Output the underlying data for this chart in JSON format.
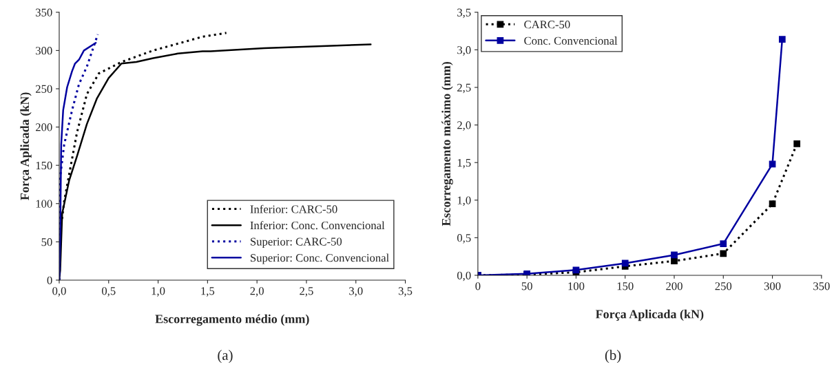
{
  "chart_data": [
    {
      "type": "line",
      "xlabel": "Escorregamento médio (mm)",
      "ylabel": "Força Aplicada (kN)",
      "xlim": [
        0,
        3.5
      ],
      "ylim": [
        0,
        350
      ],
      "xticks": [
        {
          "value": 0,
          "label": "0,0"
        },
        {
          "value": 0.5,
          "label": "0,5"
        },
        {
          "value": 1,
          "label": "1,0"
        },
        {
          "value": 1.5,
          "label": "1,5"
        },
        {
          "value": 2,
          "label": "2,0"
        },
        {
          "value": 2.5,
          "label": "2,5"
        },
        {
          "value": 3,
          "label": "3,0"
        },
        {
          "value": 3.5,
          "label": "3,5"
        }
      ],
      "yticks": [
        0,
        50,
        100,
        150,
        200,
        250,
        300,
        350
      ],
      "legend": "bottom right",
      "grid": false,
      "annotations": [
        "(a)"
      ],
      "series": [
        {
          "name": "Inferior: CARC-50",
          "color": "#000000",
          "line_style": "dotted",
          "x": [
            0,
            0.01,
            0.05,
            0.18,
            0.28,
            0.4,
            0.63,
            0.95,
            1.45,
            1.69
          ],
          "values": [
            0,
            60,
            103,
            193,
            243,
            270,
            285,
            300,
            318,
            323
          ]
        },
        {
          "name": "Inferior: Conc. Convencional",
          "color": "#000000",
          "line_style": "solid",
          "x": [
            0,
            0.01,
            0.03,
            0.1,
            0.18,
            0.28,
            0.38,
            0.5,
            0.63,
            0.78,
            0.95,
            1.2,
            1.45,
            1.53,
            2.07,
            3.15
          ],
          "values": [
            0,
            13,
            87,
            130,
            162,
            204,
            237,
            264,
            283,
            285,
            290,
            296,
            299,
            299,
            303,
            308
          ]
        },
        {
          "name": "Superior: CARC-50",
          "color": "#0000a0",
          "line_style": "dotted",
          "x": [
            0,
            0.01,
            0.05,
            0.13,
            0.2,
            0.28,
            0.39
          ],
          "values": [
            0,
            135,
            177,
            222,
            256,
            279,
            321
          ]
        },
        {
          "name": "Superior: Conc. Convencional",
          "color": "#0000a0",
          "line_style": "solid",
          "x": [
            0,
            0.01,
            0.02,
            0.04,
            0.08,
            0.13,
            0.16,
            0.2,
            0.25,
            0.37
          ],
          "values": [
            0,
            58,
            177,
            222,
            252,
            273,
            283,
            288,
            300,
            310
          ]
        }
      ]
    },
    {
      "type": "line",
      "xlabel": "Força Aplicada (kN)",
      "ylabel": "Escorregamento máximo (mm)",
      "xlim": [
        0,
        350
      ],
      "ylim": [
        0,
        3.5
      ],
      "xticks": [
        0,
        50,
        100,
        150,
        200,
        250,
        300,
        350
      ],
      "yticks": [
        {
          "value": 0,
          "label": "0,0"
        },
        {
          "value": 0.5,
          "label": "0,5"
        },
        {
          "value": 1,
          "label": "1,0"
        },
        {
          "value": 1.5,
          "label": "1,5"
        },
        {
          "value": 2,
          "label": "2,0"
        },
        {
          "value": 2.5,
          "label": "2,5"
        },
        {
          "value": 3,
          "label": "3,0"
        },
        {
          "value": 3.5,
          "label": "3,5"
        }
      ],
      "legend": "top left",
      "grid": false,
      "marker": "square",
      "annotations": [
        "(b)"
      ],
      "series": [
        {
          "name": "CARC-50",
          "color": "#000000",
          "line_style": "dotted",
          "x": [
            0,
            50,
            100,
            150,
            200,
            250,
            300,
            325
          ],
          "values": [
            0,
            0.01,
            0.04,
            0.12,
            0.19,
            0.29,
            0.95,
            1.75
          ]
        },
        {
          "name": "Conc. Convencional",
          "color": "#0000a0",
          "line_style": "solid",
          "x": [
            0,
            50,
            100,
            150,
            200,
            250,
            300,
            310
          ],
          "values": [
            0,
            0.02,
            0.07,
            0.16,
            0.27,
            0.42,
            1.48,
            3.14
          ]
        }
      ]
    }
  ]
}
